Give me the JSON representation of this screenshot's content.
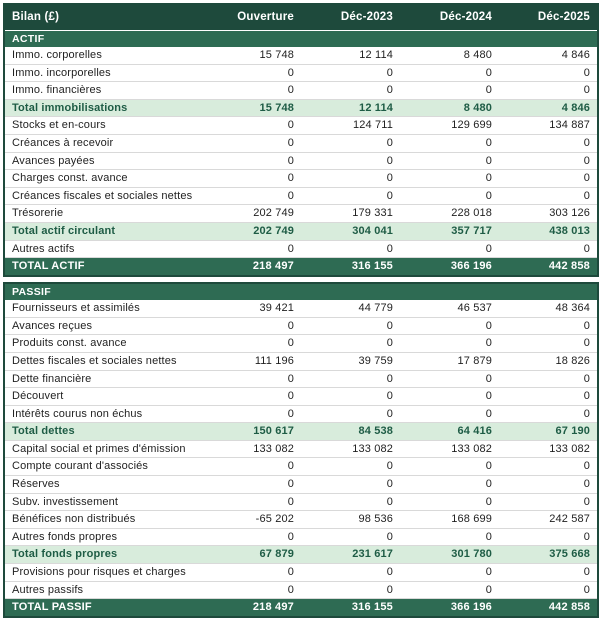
{
  "table": {
    "title": "Bilan (£)",
    "columns": [
      "Ouverture",
      "Déc-2023",
      "Déc-2024",
      "Déc-2025"
    ],
    "sections": [
      {
        "name": "ACTIF",
        "rows": [
          {
            "label": "Immo. corporelles",
            "values": [
              "15 748",
              "12 114",
              "8 480",
              "4 846"
            ],
            "style": "normal"
          },
          {
            "label": "Immo. incorporelles",
            "values": [
              "0",
              "0",
              "0",
              "0"
            ],
            "style": "normal"
          },
          {
            "label": "Immo. financières",
            "values": [
              "0",
              "0",
              "0",
              "0"
            ],
            "style": "normal"
          },
          {
            "label": "Total immobilisations",
            "values": [
              "15 748",
              "12 114",
              "8 480",
              "4 846"
            ],
            "style": "subtotal"
          },
          {
            "label": "Stocks et en-cours",
            "values": [
              "0",
              "124 711",
              "129 699",
              "134 887"
            ],
            "style": "normal"
          },
          {
            "label": "Créances à recevoir",
            "values": [
              "0",
              "0",
              "0",
              "0"
            ],
            "style": "normal"
          },
          {
            "label": "Avances payées",
            "values": [
              "0",
              "0",
              "0",
              "0"
            ],
            "style": "normal"
          },
          {
            "label": "Charges const. avance",
            "values": [
              "0",
              "0",
              "0",
              "0"
            ],
            "style": "normal"
          },
          {
            "label": "Créances fiscales et sociales nettes",
            "values": [
              "0",
              "0",
              "0",
              "0"
            ],
            "style": "normal"
          },
          {
            "label": "Trésorerie",
            "values": [
              "202 749",
              "179 331",
              "228 018",
              "303 126"
            ],
            "style": "normal"
          },
          {
            "label": "Total actif circulant",
            "values": [
              "202 749",
              "304 041",
              "357 717",
              "438 013"
            ],
            "style": "subtotal"
          },
          {
            "label": "Autres actifs",
            "values": [
              "0",
              "0",
              "0",
              "0"
            ],
            "style": "normal"
          },
          {
            "label": "TOTAL ACTIF",
            "values": [
              "218 497",
              "316 155",
              "366 196",
              "442 858"
            ],
            "style": "total"
          }
        ]
      },
      {
        "name": "PASSIF",
        "rows": [
          {
            "label": "Fournisseurs et assimilés",
            "values": [
              "39 421",
              "44 779",
              "46 537",
              "48 364"
            ],
            "style": "normal"
          },
          {
            "label": "Avances reçues",
            "values": [
              "0",
              "0",
              "0",
              "0"
            ],
            "style": "normal"
          },
          {
            "label": "Produits const. avance",
            "values": [
              "0",
              "0",
              "0",
              "0"
            ],
            "style": "normal"
          },
          {
            "label": "Dettes fiscales et sociales nettes",
            "values": [
              "111 196",
              "39 759",
              "17 879",
              "18 826"
            ],
            "style": "normal"
          },
          {
            "label": "Dette financière",
            "values": [
              "0",
              "0",
              "0",
              "0"
            ],
            "style": "normal"
          },
          {
            "label": "Découvert",
            "values": [
              "0",
              "0",
              "0",
              "0"
            ],
            "style": "normal"
          },
          {
            "label": "Intérêts courus non échus",
            "values": [
              "0",
              "0",
              "0",
              "0"
            ],
            "style": "normal"
          },
          {
            "label": "Total dettes",
            "values": [
              "150 617",
              "84 538",
              "64 416",
              "67 190"
            ],
            "style": "subtotal"
          },
          {
            "label": "Capital social et primes d'émission",
            "values": [
              "133 082",
              "133 082",
              "133 082",
              "133 082"
            ],
            "style": "normal"
          },
          {
            "label": "Compte courant d'associés",
            "values": [
              "0",
              "0",
              "0",
              "0"
            ],
            "style": "normal"
          },
          {
            "label": "Réserves",
            "values": [
              "0",
              "0",
              "0",
              "0"
            ],
            "style": "normal"
          },
          {
            "label": "Subv. investissement",
            "values": [
              "0",
              "0",
              "0",
              "0"
            ],
            "style": "normal"
          },
          {
            "label": "Bénéfices non distribués",
            "values": [
              "-65 202",
              "98 536",
              "168 699",
              "242 587"
            ],
            "style": "normal"
          },
          {
            "label": "Autres fonds propres",
            "values": [
              "0",
              "0",
              "0",
              "0"
            ],
            "style": "normal"
          },
          {
            "label": "Total fonds propres",
            "values": [
              "67 879",
              "231 617",
              "301 780",
              "375 668"
            ],
            "style": "subtotal"
          },
          {
            "label": "Provisions pour risques et charges",
            "values": [
              "0",
              "0",
              "0",
              "0"
            ],
            "style": "normal"
          },
          {
            "label": "Autres passifs",
            "values": [
              "0",
              "0",
              "0",
              "0"
            ],
            "style": "normal"
          },
          {
            "label": "TOTAL PASSIF",
            "values": [
              "218 497",
              "316 155",
              "366 196",
              "442 858"
            ],
            "style": "total"
          }
        ]
      }
    ]
  },
  "colors": {
    "header_bg": "#1e4a3c",
    "section_bg": "#2e6b53",
    "subtotal_bg": "#d8ecdc",
    "subtotal_text": "#1e5c45",
    "row_border": "#d9d9d9",
    "outer_border": "#1e4a3c",
    "body_text": "#1f1f1f",
    "background": "#ffffff"
  }
}
